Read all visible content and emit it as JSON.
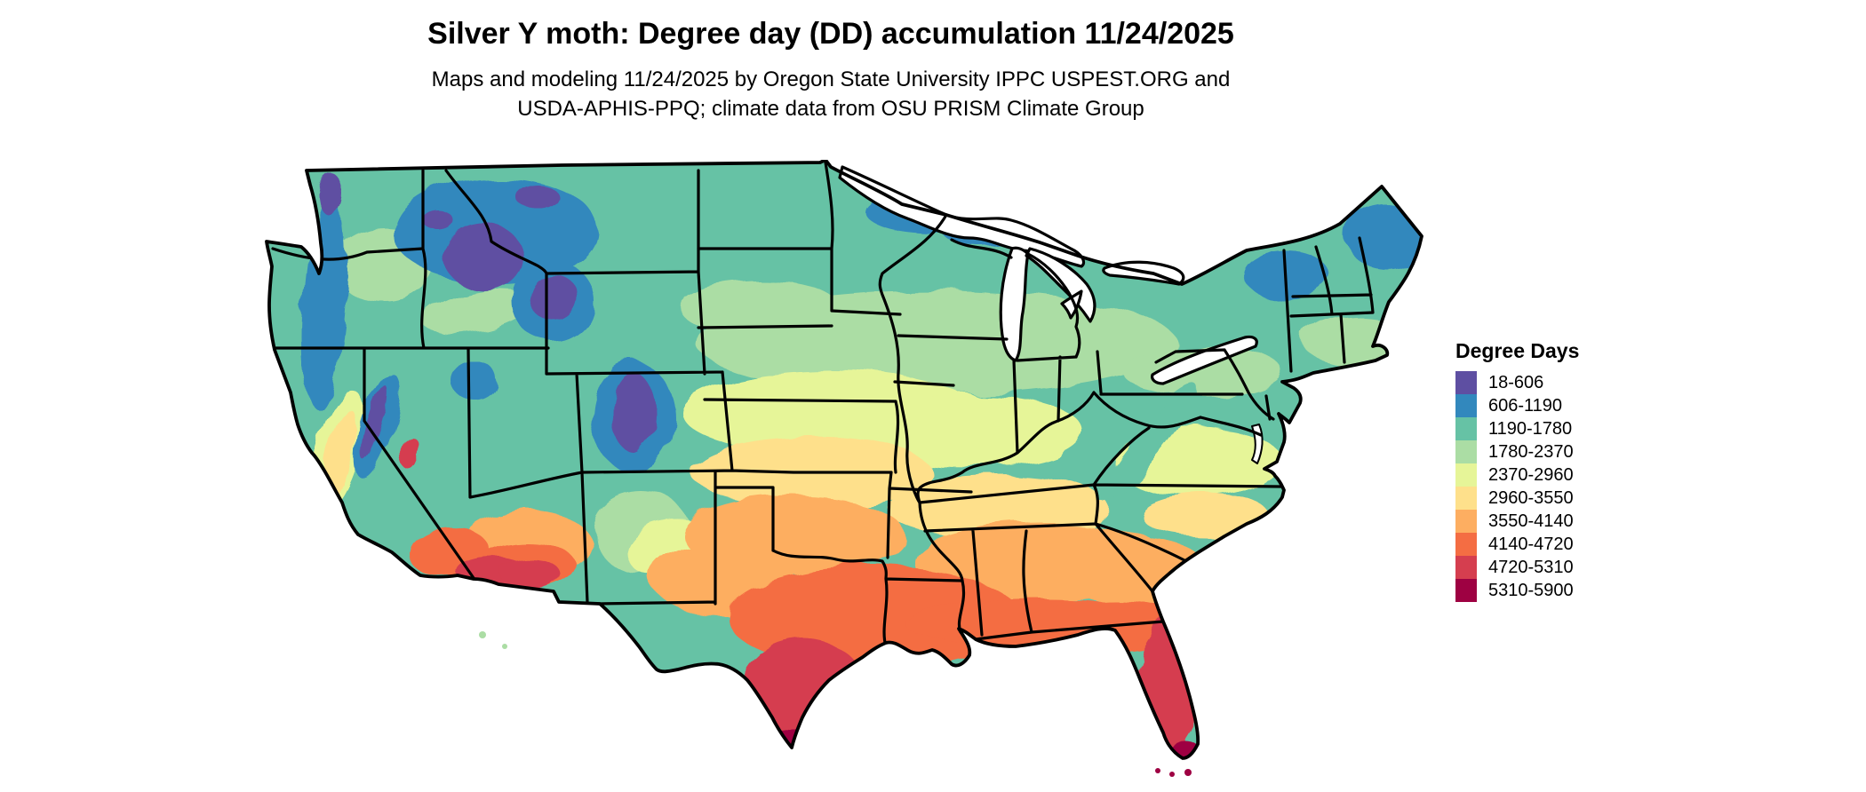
{
  "header": {
    "title": "Silver Y moth: Degree day (DD) accumulation 11/24/2025",
    "subtitle_line1": "Maps and modeling 11/24/2025 by Oregon State University IPPC USPEST.ORG and",
    "subtitle_line2": "USDA-APHIS-PPQ; climate data from OSU PRISM Climate Group"
  },
  "map": {
    "region": "Continental United States",
    "kind": "degree-day accumulation raster map",
    "border_color": "#000000",
    "water_color": "#ffffff"
  },
  "legend": {
    "title": "Degree Days",
    "items": [
      {
        "label": "18-606",
        "color": "#5e4fa2"
      },
      {
        "label": "606-1190",
        "color": "#3288bd"
      },
      {
        "label": "1190-1780",
        "color": "#66c2a5"
      },
      {
        "label": "1780-2370",
        "color": "#abdda4"
      },
      {
        "label": "2370-2960",
        "color": "#e6f598"
      },
      {
        "label": "2960-3550",
        "color": "#fee08b"
      },
      {
        "label": "3550-4140",
        "color": "#fdae61"
      },
      {
        "label": "4140-4720",
        "color": "#f46d43"
      },
      {
        "label": "4720-5310",
        "color": "#d53e4f"
      },
      {
        "label": "5310-5900",
        "color": "#9e0142"
      }
    ]
  }
}
